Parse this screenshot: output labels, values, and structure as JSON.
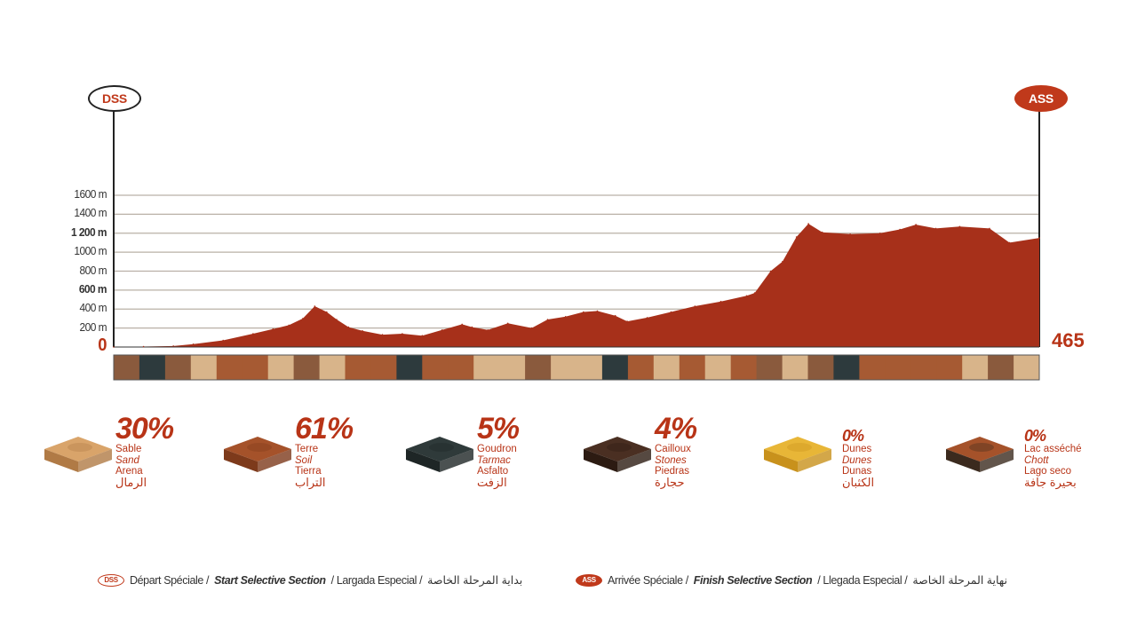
{
  "chart_data": {
    "type": "area",
    "title": "",
    "xlabel": "",
    "ylabel": "",
    "ylim": [
      0,
      1600
    ],
    "xlim": [
      0,
      465
    ],
    "distance_label": "465",
    "y_ticks": [
      {
        "value": 0,
        "label": "0"
      },
      {
        "value": 200,
        "label": "200 m"
      },
      {
        "value": 400,
        "label": "400 m"
      },
      {
        "value": 600,
        "label": "600 m"
      },
      {
        "value": 800,
        "label": "800 m"
      },
      {
        "value": 1000,
        "label": "1000 m"
      },
      {
        "value": 1200,
        "label": "1 200 m"
      },
      {
        "value": 1400,
        "label": "1400 m"
      },
      {
        "value": 1600,
        "label": "1600 m"
      }
    ],
    "start_marker": "DSS",
    "finish_marker": "ASS",
    "elevation_profile": [
      {
        "km": 0,
        "m": 0
      },
      {
        "km": 15,
        "m": 5
      },
      {
        "km": 30,
        "m": 10
      },
      {
        "km": 40,
        "m": 30
      },
      {
        "km": 55,
        "m": 70
      },
      {
        "km": 70,
        "m": 140
      },
      {
        "km": 80,
        "m": 190
      },
      {
        "km": 88,
        "m": 230
      },
      {
        "km": 95,
        "m": 300
      },
      {
        "km": 101,
        "m": 430
      },
      {
        "km": 107,
        "m": 370
      },
      {
        "km": 112,
        "m": 290
      },
      {
        "km": 118,
        "m": 210
      },
      {
        "km": 125,
        "m": 170
      },
      {
        "km": 135,
        "m": 130
      },
      {
        "km": 145,
        "m": 140
      },
      {
        "km": 155,
        "m": 120
      },
      {
        "km": 165,
        "m": 180
      },
      {
        "km": 175,
        "m": 240
      },
      {
        "km": 180,
        "m": 210
      },
      {
        "km": 188,
        "m": 180
      },
      {
        "km": 198,
        "m": 250
      },
      {
        "km": 210,
        "m": 200
      },
      {
        "km": 218,
        "m": 290
      },
      {
        "km": 227,
        "m": 320
      },
      {
        "km": 236,
        "m": 370
      },
      {
        "km": 243,
        "m": 380
      },
      {
        "km": 252,
        "m": 330
      },
      {
        "km": 258,
        "m": 270
      },
      {
        "km": 268,
        "m": 310
      },
      {
        "km": 280,
        "m": 370
      },
      {
        "km": 292,
        "m": 430
      },
      {
        "km": 305,
        "m": 480
      },
      {
        "km": 318,
        "m": 540
      },
      {
        "km": 322,
        "m": 570
      },
      {
        "km": 330,
        "m": 800
      },
      {
        "km": 336,
        "m": 900
      },
      {
        "km": 343,
        "m": 1160
      },
      {
        "km": 349,
        "m": 1300
      },
      {
        "km": 356,
        "m": 1210
      },
      {
        "km": 370,
        "m": 1190
      },
      {
        "km": 385,
        "m": 1200
      },
      {
        "km": 395,
        "m": 1240
      },
      {
        "km": 403,
        "m": 1290
      },
      {
        "km": 413,
        "m": 1250
      },
      {
        "km": 425,
        "m": 1270
      },
      {
        "km": 440,
        "m": 1250
      },
      {
        "km": 450,
        "m": 1100
      },
      {
        "km": 465,
        "m": 1150
      }
    ],
    "surface_strip": [
      "rock",
      "dark",
      "rock",
      "sand",
      "soil",
      "soil",
      "sand",
      "rock",
      "sand",
      "soil",
      "soil",
      "dark",
      "soil",
      "soil",
      "sand",
      "sand",
      "rock",
      "sand",
      "sand",
      "dark",
      "soil",
      "sand",
      "soil",
      "sand",
      "soil",
      "rock",
      "sand",
      "rock",
      "dark",
      "soil",
      "soil",
      "soil",
      "soil",
      "sand",
      "rock",
      "sand"
    ]
  },
  "terrains": [
    {
      "percent": "30%",
      "fr": "Sable",
      "en": "Sand",
      "es": "Arena",
      "ar": "الرمال",
      "color": "#d9a46a",
      "dark": "#b07a45"
    },
    {
      "percent": "61%",
      "fr": "Terre",
      "en": "Soil",
      "es": "Tierra",
      "ar": "التراب",
      "color": "#a5522a",
      "dark": "#7d3a1b"
    },
    {
      "percent": "5%",
      "fr": "Goudron",
      "en": "Tarmac",
      "es": "Asfalto",
      "ar": "الزفت",
      "color": "#2f3a3a",
      "dark": "#1e2626"
    },
    {
      "percent": "4%",
      "fr": "Cailloux",
      "en": "Stones",
      "es": "Piedras",
      "ar": "حجارة",
      "color": "#4a2f22",
      "dark": "#2c1b12"
    },
    {
      "percent": "0%",
      "fr": "Dunes",
      "en": "Dunes",
      "es": "Dunas",
      "ar": "الكثبان",
      "color": "#e8b637",
      "dark": "#c8911c"
    },
    {
      "percent": "0%",
      "fr": "Lac asséché",
      "en": "Chott",
      "es": "Lago seco",
      "ar": "بحيرة جافة",
      "color": "#a5522a",
      "dark": "#3b2a1e"
    }
  ],
  "legend": {
    "dss": {
      "badge": "DSS",
      "fr": "Départ Spéciale /",
      "en": "Start Selective Section",
      "es": "/ Largada Especial /",
      "ar": "بداية المرحلة الخاصة"
    },
    "ass": {
      "badge": "ASS",
      "fr": "Arrivée Spéciale /",
      "en": "Finish Selective Section",
      "es": "/ Llegada Especial /",
      "ar": "نهاية المرحلة الخاصة"
    }
  },
  "colors": {
    "profile": "#a7301a",
    "gridline": "#b9b0a6",
    "accent": "#b83417"
  }
}
